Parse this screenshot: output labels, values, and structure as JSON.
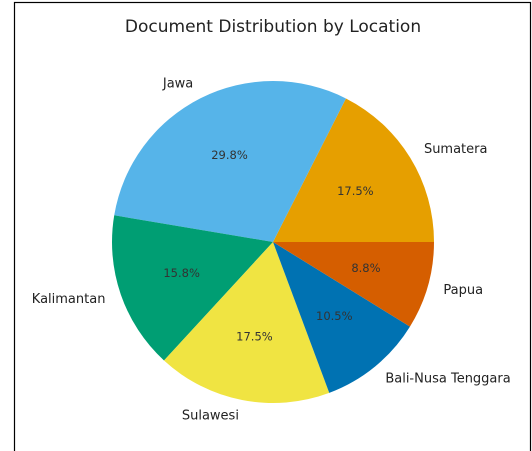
{
  "chart_data": {
    "type": "pie",
    "title": "Document Distribution by Location",
    "categories": [
      "Sumatera",
      "Jawa",
      "Kalimantan",
      "Sulawesi",
      "Bali-Nusa Tenggara",
      "Papua"
    ],
    "values": [
      17.5,
      29.8,
      15.8,
      17.5,
      10.5,
      8.8
    ],
    "value_labels": [
      "17.5%",
      "29.8%",
      "15.8%",
      "17.5%",
      "10.5%",
      "8.8%"
    ],
    "colors": [
      "#E69F00",
      "#56B4E9",
      "#009E73",
      "#F0E442",
      "#0072B2",
      "#D55E00"
    ]
  }
}
